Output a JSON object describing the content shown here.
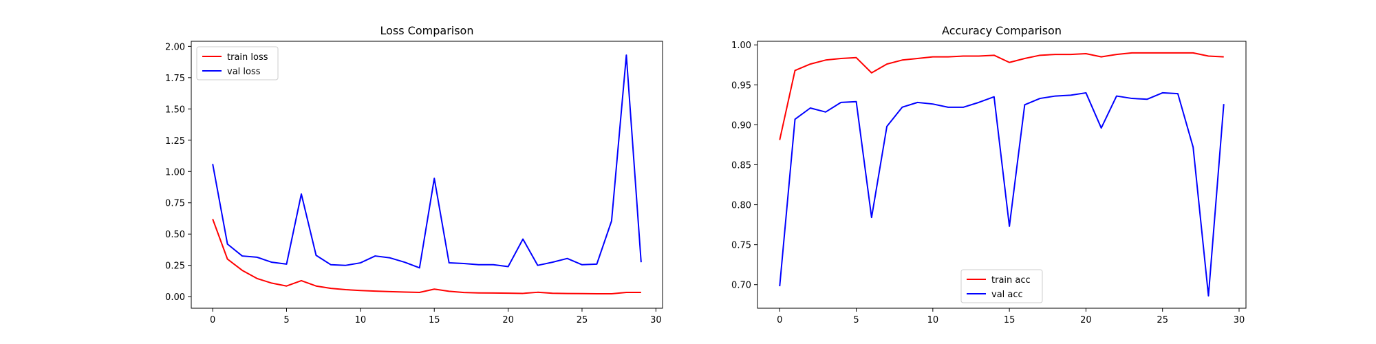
{
  "chart_data": [
    {
      "type": "line",
      "title": "Loss Comparison",
      "xlabel": "",
      "ylabel": "",
      "xlim": [
        -1.45,
        30.45
      ],
      "ylim": [
        -0.0925,
        2.0405
      ],
      "xticks": [
        0,
        5,
        10,
        15,
        20,
        25,
        30
      ],
      "xtick_labels": [
        "0",
        "5",
        "10",
        "15",
        "20",
        "25",
        "30"
      ],
      "yticks": [
        0,
        0.25,
        0.5,
        0.75,
        1.0,
        1.25,
        1.5,
        1.75,
        2.0
      ],
      "ytick_labels": [
        "0.00",
        "0.25",
        "0.50",
        "0.75",
        "1.00",
        "1.25",
        "1.50",
        "1.75",
        "2.00"
      ],
      "grid": false,
      "legend_position": "upper-left",
      "x": [
        0,
        1,
        2,
        3,
        4,
        5,
        6,
        7,
        8,
        9,
        10,
        11,
        12,
        13,
        14,
        15,
        16,
        17,
        18,
        19,
        20,
        21,
        22,
        23,
        24,
        25,
        26,
        27,
        28,
        29
      ],
      "series": [
        {
          "name": "train loss",
          "color": "#ff0000",
          "values": [
            0.62,
            0.3,
            0.21,
            0.145,
            0.108,
            0.085,
            0.128,
            0.085,
            0.066,
            0.056,
            0.049,
            0.044,
            0.04,
            0.037,
            0.034,
            0.06,
            0.043,
            0.033,
            0.03,
            0.029,
            0.028,
            0.026,
            0.035,
            0.027,
            0.025,
            0.024,
            0.023,
            0.023,
            0.034,
            0.034
          ]
        },
        {
          "name": "val loss",
          "color": "#0000ff",
          "values": [
            1.06,
            0.42,
            0.325,
            0.315,
            0.275,
            0.26,
            0.82,
            0.33,
            0.255,
            0.25,
            0.27,
            0.325,
            0.31,
            0.275,
            0.23,
            0.945,
            0.27,
            0.265,
            0.255,
            0.255,
            0.24,
            0.46,
            0.25,
            0.275,
            0.305,
            0.255,
            0.26,
            0.605,
            1.93,
            0.275
          ]
        }
      ]
    },
    {
      "type": "line",
      "title": "Accuracy Comparison",
      "xlabel": "",
      "ylabel": "",
      "xlim": [
        -1.45,
        30.45
      ],
      "ylim": [
        0.6705,
        1.0045
      ],
      "xticks": [
        0,
        5,
        10,
        15,
        20,
        25,
        30
      ],
      "xtick_labels": [
        "0",
        "5",
        "10",
        "15",
        "20",
        "25",
        "30"
      ],
      "yticks": [
        0.7,
        0.75,
        0.8,
        0.85,
        0.9,
        0.95,
        1.0
      ],
      "ytick_labels": [
        "0.70",
        "0.75",
        "0.80",
        "0.85",
        "0.90",
        "0.95",
        "1.00"
      ],
      "grid": false,
      "legend_position": "lower-center",
      "x": [
        0,
        1,
        2,
        3,
        4,
        5,
        6,
        7,
        8,
        9,
        10,
        11,
        12,
        13,
        14,
        15,
        16,
        17,
        18,
        19,
        20,
        21,
        22,
        23,
        24,
        25,
        26,
        27,
        28,
        29
      ],
      "series": [
        {
          "name": "train acc",
          "color": "#ff0000",
          "values": [
            0.881,
            0.968,
            0.976,
            0.981,
            0.983,
            0.984,
            0.965,
            0.976,
            0.981,
            0.983,
            0.985,
            0.985,
            0.986,
            0.986,
            0.987,
            0.978,
            0.983,
            0.987,
            0.988,
            0.988,
            0.989,
            0.985,
            0.988,
            0.99,
            0.99,
            0.99,
            0.99,
            0.99,
            0.986,
            0.985
          ]
        },
        {
          "name": "val acc",
          "color": "#0000ff",
          "values": [
            0.698,
            0.907,
            0.921,
            0.916,
            0.928,
            0.929,
            0.784,
            0.898,
            0.922,
            0.928,
            0.926,
            0.922,
            0.922,
            0.928,
            0.935,
            0.773,
            0.925,
            0.933,
            0.936,
            0.937,
            0.94,
            0.896,
            0.936,
            0.933,
            0.932,
            0.94,
            0.939,
            0.872,
            0.686,
            0.926
          ]
        }
      ]
    }
  ]
}
